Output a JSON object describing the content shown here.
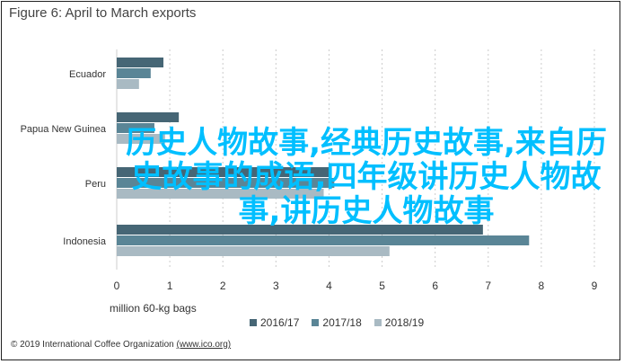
{
  "chart_data": {
    "type": "bar",
    "orientation": "horizontal",
    "title": "Figure 6: April to March exports",
    "xlabel": "million 60-kg bags",
    "categories": [
      "Ecuador",
      "Papua New Guinea",
      "Peru",
      "Indonesia"
    ],
    "series": [
      {
        "name": "2016/17",
        "color": "#466675",
        "values": [
          0.88,
          1.17,
          4.0,
          6.9
        ]
      },
      {
        "name": "2017/18",
        "color": "#5a8596",
        "values": [
          0.64,
          0.71,
          4.1,
          7.77
        ]
      },
      {
        "name": "2018/19",
        "color": "#a9bac3",
        "values": [
          0.42,
          0.91,
          3.9,
          5.14
        ]
      }
    ],
    "xlim": [
      0,
      9
    ],
    "xticks": [
      "0",
      "1",
      "2",
      "3",
      "4",
      "5",
      "6",
      "7",
      "8",
      "9"
    ],
    "grid": true,
    "legend": "bottom"
  },
  "footer": {
    "copyright": "© 2019 International Coffee Organization ",
    "link": "(www.ico.org)"
  },
  "overlay": {
    "text": "历史人物故事,经典历史故事,来自历史故事的成语,四年级讲历史人物故事,讲历史人物故事",
    "color": "#00bfff"
  }
}
